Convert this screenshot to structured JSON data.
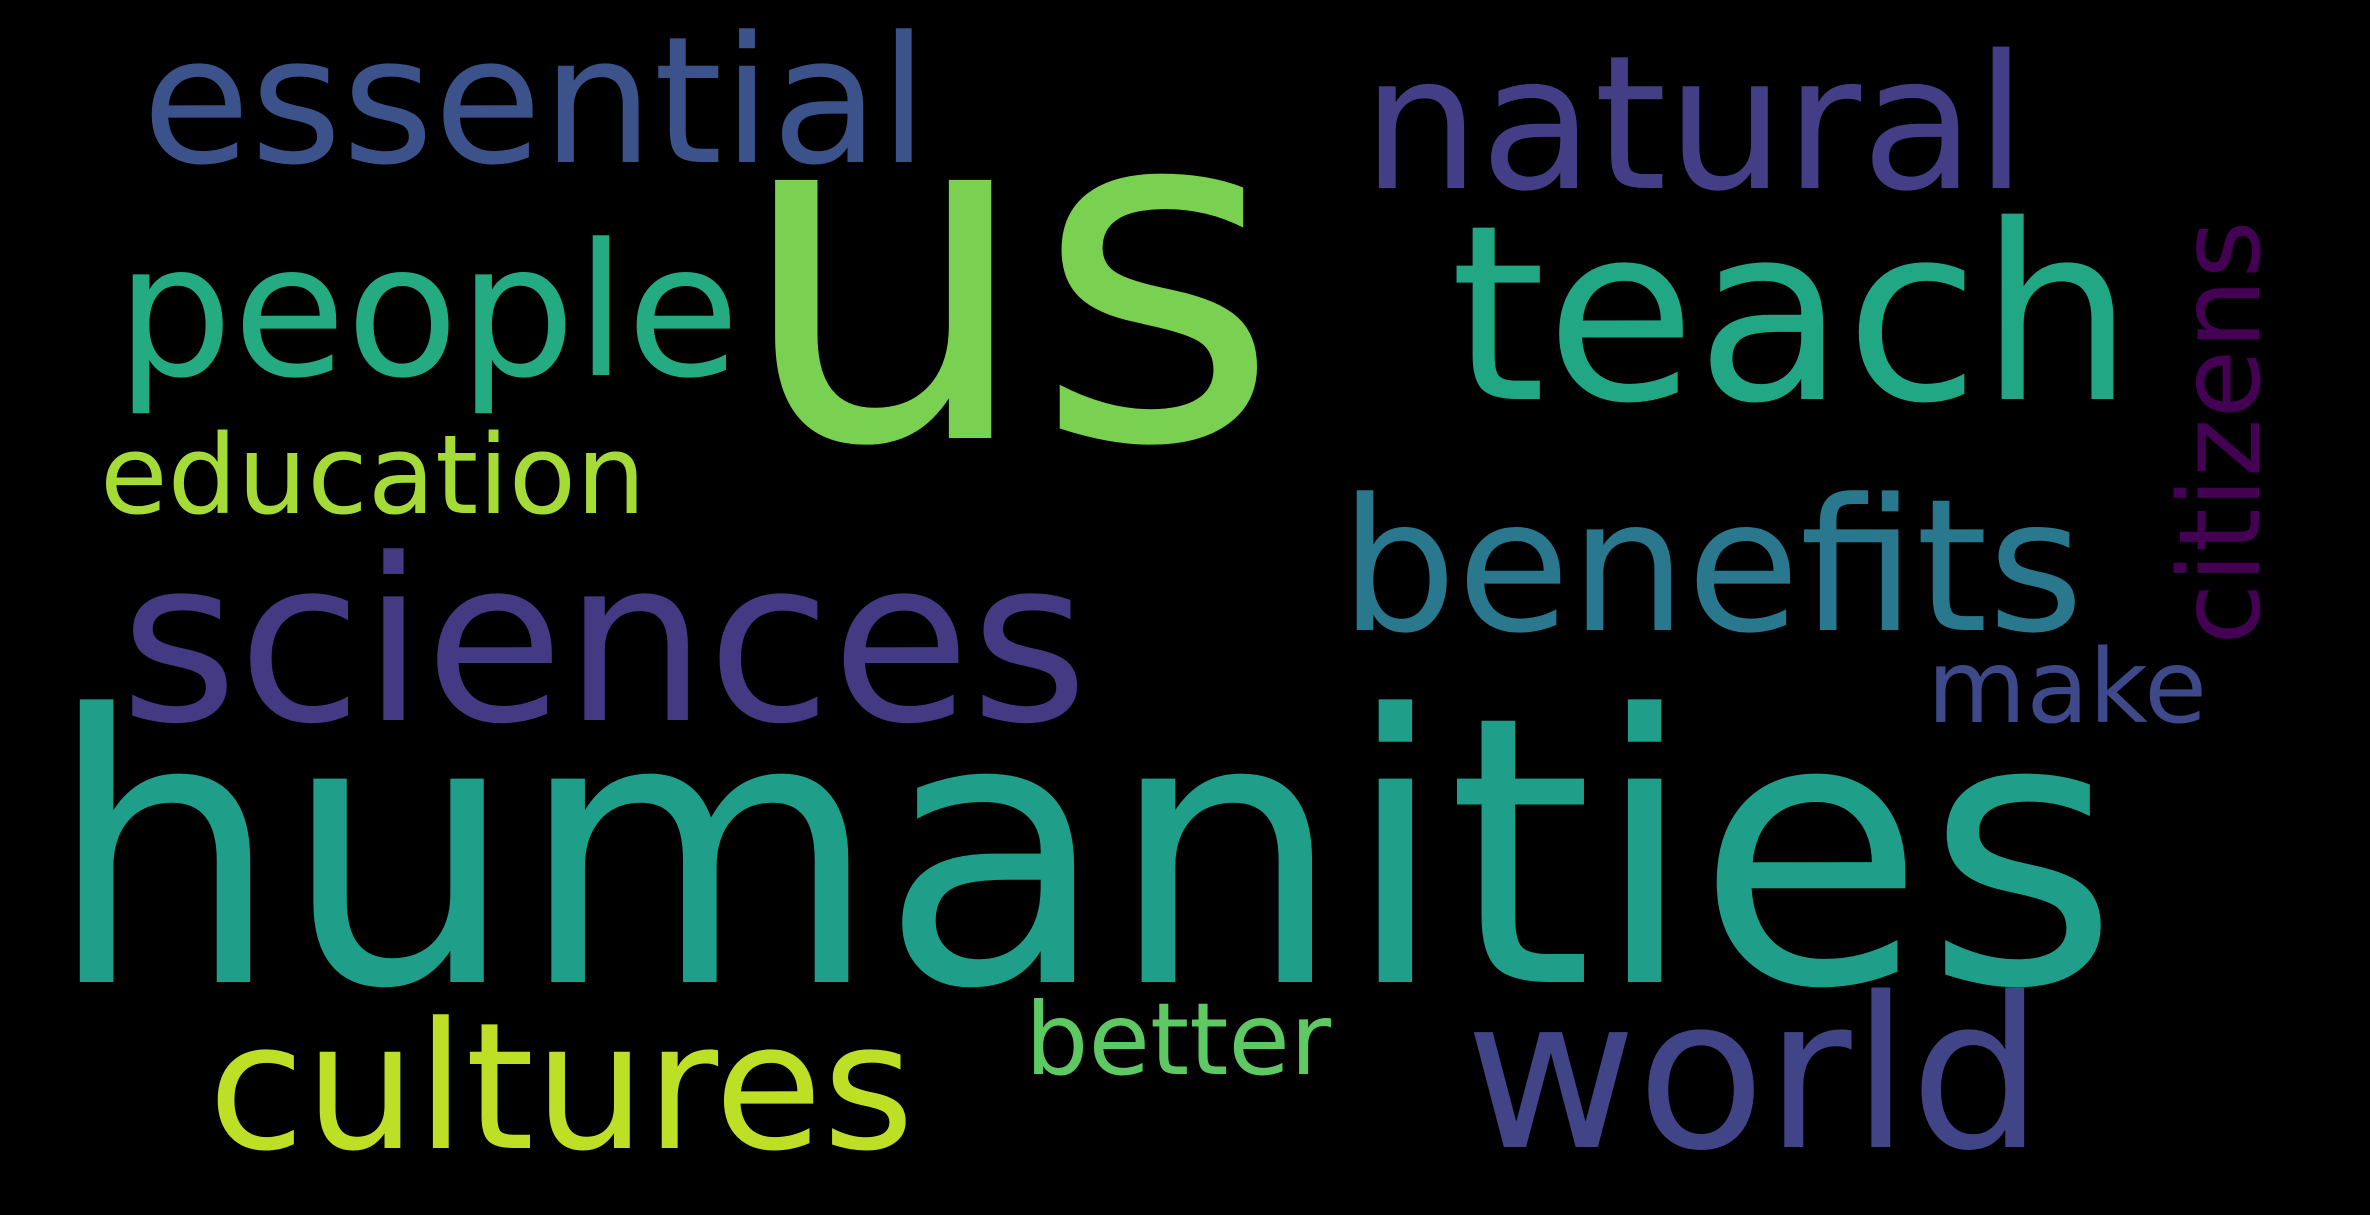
{
  "word_cloud": {
    "background": "#000000",
    "words": [
      {
        "key": "humanities",
        "text": "humanities",
        "color": "#1f9e89"
      },
      {
        "key": "us",
        "text": "us",
        "color": "#7ad151"
      },
      {
        "key": "sciences",
        "text": "sciences",
        "color": "#443983"
      },
      {
        "key": "teach",
        "text": "teach",
        "color": "#22a785"
      },
      {
        "key": "natural",
        "text": "natural",
        "color": "#433e85"
      },
      {
        "key": "essential",
        "text": "essential",
        "color": "#3b528b"
      },
      {
        "key": "people",
        "text": "people",
        "color": "#25ab82"
      },
      {
        "key": "benefits",
        "text": "benefits",
        "color": "#2a788e"
      },
      {
        "key": "world",
        "text": "world",
        "color": "#414487"
      },
      {
        "key": "cultures",
        "text": "cultures",
        "color": "#bddf26"
      },
      {
        "key": "education",
        "text": "education",
        "color": "#a5db36"
      },
      {
        "key": "citizens",
        "text": "citizens",
        "color": "#440154"
      },
      {
        "key": "make",
        "text": "make",
        "color": "#3e4989"
      },
      {
        "key": "better",
        "text": "better",
        "color": "#5ec962"
      }
    ]
  }
}
